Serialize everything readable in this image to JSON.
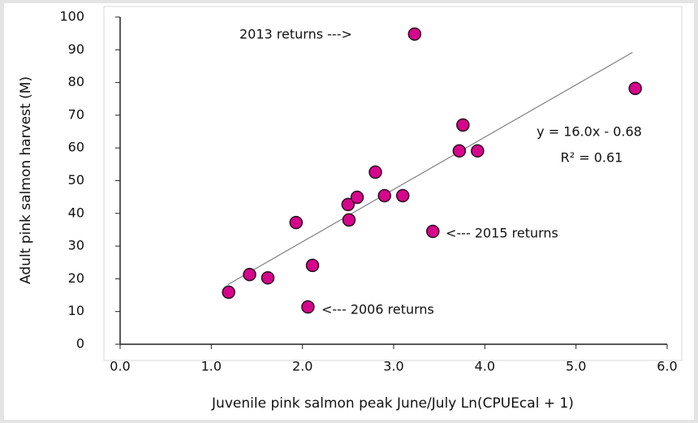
{
  "chart_data": {
    "type": "scatter",
    "xlabel": "Juvenile pink salmon peak June/July Ln(CPUEcal + 1)",
    "ylabel": "Adult pink salmon harvest (M)",
    "series": [
      {
        "name": "Harvest",
        "color": "#d6058c",
        "x": [
          1.19,
          1.42,
          1.62,
          1.93,
          2.06,
          2.11,
          2.5,
          2.51,
          2.6,
          2.8,
          2.9,
          3.1,
          3.23,
          3.43,
          3.72,
          3.76,
          3.92,
          5.65
        ],
        "values": [
          15.9,
          21.3,
          20.3,
          37.2,
          11.4,
          24.1,
          42.7,
          38.0,
          44.9,
          52.6,
          45.4,
          45.4,
          94.8,
          34.5,
          59.1,
          67.0,
          59.1,
          78.2
        ]
      }
    ],
    "trendline": {
      "x": [
        1.18,
        5.62
      ],
      "y": [
        18.2,
        89.2
      ],
      "color": "#808080"
    },
    "annotations": [
      "2013 returns --->",
      "<--- 2015 returns",
      "<--- 2006 returns",
      "y = 16.0x - 0.68",
      "R² = 0.61"
    ],
    "xlim": [
      0,
      6
    ],
    "ylim": [
      0,
      100
    ],
    "xticks": [
      {
        "value": 0,
        "label": "0.0"
      },
      {
        "value": 1,
        "label": "1.0"
      },
      {
        "value": 2,
        "label": "2.0"
      },
      {
        "value": 3,
        "label": "3.0"
      },
      {
        "value": 4,
        "label": "4.0"
      },
      {
        "value": 5,
        "label": "5.0"
      },
      {
        "value": 6,
        "label": "6.0"
      }
    ],
    "yticks": [
      0,
      10,
      20,
      30,
      40,
      50,
      60,
      70,
      80,
      90,
      100
    ]
  }
}
